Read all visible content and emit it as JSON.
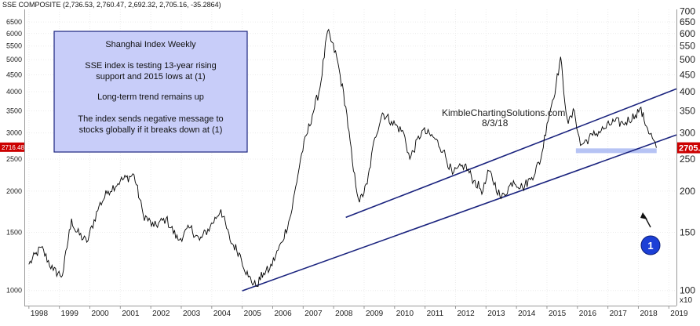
{
  "header": "SSE COMPOSITE (2,736.53, 2,760.47, 2,692.32, 2,705.16, -35.2864)",
  "watermark": {
    "line1": "KimbleChartingSolutions.com",
    "line2": "8/3/18"
  },
  "annotation": {
    "lines": [
      "Shanghai Index Weekly",
      "SSE index is testing 13-year rising",
      "support and 2015 lows at (1)",
      "Long-term trend remains up",
      "The index sends negative message to",
      "stocks globally if it breaks down at (1)"
    ]
  },
  "marker_label": "1",
  "colors": {
    "trendline": "#1a237e",
    "support_band": "#a9b8f2",
    "annotation_bg": "#c8cdf9",
    "annotation_border": "#1a237e",
    "marker": "#1c3fd6",
    "price_tag": "#cc0000",
    "price": "#000000"
  },
  "chart_data": {
    "type": "line",
    "title": "",
    "y_scale": "log",
    "ylim": [
      900,
      7100
    ],
    "xlim": [
      1997.85,
      2019.25
    ],
    "left_ticks": [
      "6500",
      "6000",
      "5500",
      "5000",
      "4500",
      "4000",
      "3500",
      "3000",
      "2716.48",
      "2500",
      "2000",
      "1500",
      "1000"
    ],
    "right_ticks": [
      "7000",
      "6500",
      "6000",
      "5500",
      "5000",
      "4500",
      "4000",
      "3500",
      "3000",
      "2705.16",
      "2500",
      "2000",
      "1500",
      "1000"
    ],
    "right_tick_labels": [
      "700",
      "650",
      "600",
      "550",
      "500",
      "450",
      "400",
      "350",
      "300",
      "2705.",
      "250",
      "200",
      "150",
      "100"
    ],
    "right_scale_label": "x10",
    "x_ticks": [
      "1998",
      "1999",
      "2000",
      "2001",
      "2002",
      "2003",
      "2004",
      "2005",
      "2006",
      "2007",
      "2008",
      "2009",
      "2010",
      "2011",
      "2012",
      "2013",
      "2014",
      "2015",
      "2016",
      "2017",
      "2018",
      "2019"
    ],
    "current_price": 2705.16,
    "left_price_tag": "2716.48",
    "right_price_tag": "2705.",
    "series": [
      {
        "x": [
          1998.0,
          1998.4,
          1998.8,
          1999.1,
          1999.4,
          1999.5,
          1999.9,
          2000.3,
          2000.6,
          2001.0,
          2001.45,
          2001.75,
          2002.1,
          2002.5,
          2002.9,
          2003.3,
          2003.6,
          2003.95,
          2004.3,
          2004.6,
          2004.9,
          2005.2,
          2005.45,
          2005.7,
          2005.9,
          2006.3,
          2006.6,
          2006.95,
          2007.3,
          2007.55,
          2007.8,
          2008.1,
          2008.4,
          2008.65,
          2008.85,
          2009.1,
          2009.35,
          2009.6,
          2009.9,
          2010.3,
          2010.5,
          2010.9,
          2011.3,
          2011.6,
          2011.9,
          2012.3,
          2012.6,
          2012.9,
          2013.1,
          2013.5,
          2013.9,
          2014.2,
          2014.5,
          2014.8,
          2015.0,
          2015.3,
          2015.45,
          2015.55,
          2015.7,
          2015.9,
          2016.1,
          2016.5,
          2016.9,
          2017.2,
          2017.5,
          2017.9,
          2018.05,
          2018.3,
          2018.5,
          2018.59
        ],
        "y": [
          1200,
          1350,
          1150,
          1110,
          1650,
          1530,
          1400,
          1800,
          2000,
          2150,
          2240,
          1700,
          1560,
          1650,
          1420,
          1550,
          1420,
          1560,
          1760,
          1420,
          1300,
          1100,
          1030,
          1130,
          1160,
          1400,
          1700,
          2600,
          3400,
          4100,
          6100,
          5100,
          3600,
          2300,
          1850,
          2100,
          2900,
          3450,
          3250,
          3000,
          2500,
          3050,
          2900,
          2650,
          2250,
          2400,
          2150,
          2000,
          2300,
          1900,
          2150,
          2050,
          2200,
          2500,
          3200,
          4200,
          5100,
          4000,
          3200,
          3500,
          2750,
          2950,
          3100,
          3250,
          3200,
          3400,
          3560,
          3100,
          2850,
          2705
        ]
      }
    ],
    "trendlines": [
      {
        "name": "",
        "x": [
          2005.0,
          2019.25
        ],
        "y": [
          998,
          2960
        ]
      },
      {
        "name": "",
        "x": [
          2008.4,
          2019.25
        ],
        "y": [
          1665,
          4080
        ]
      }
    ],
    "support_zone": {
      "x": [
        2015.95,
        2018.6
      ],
      "y": 2650
    },
    "marker": {
      "x": 2018.68,
      "y_price": 2690
    }
  }
}
